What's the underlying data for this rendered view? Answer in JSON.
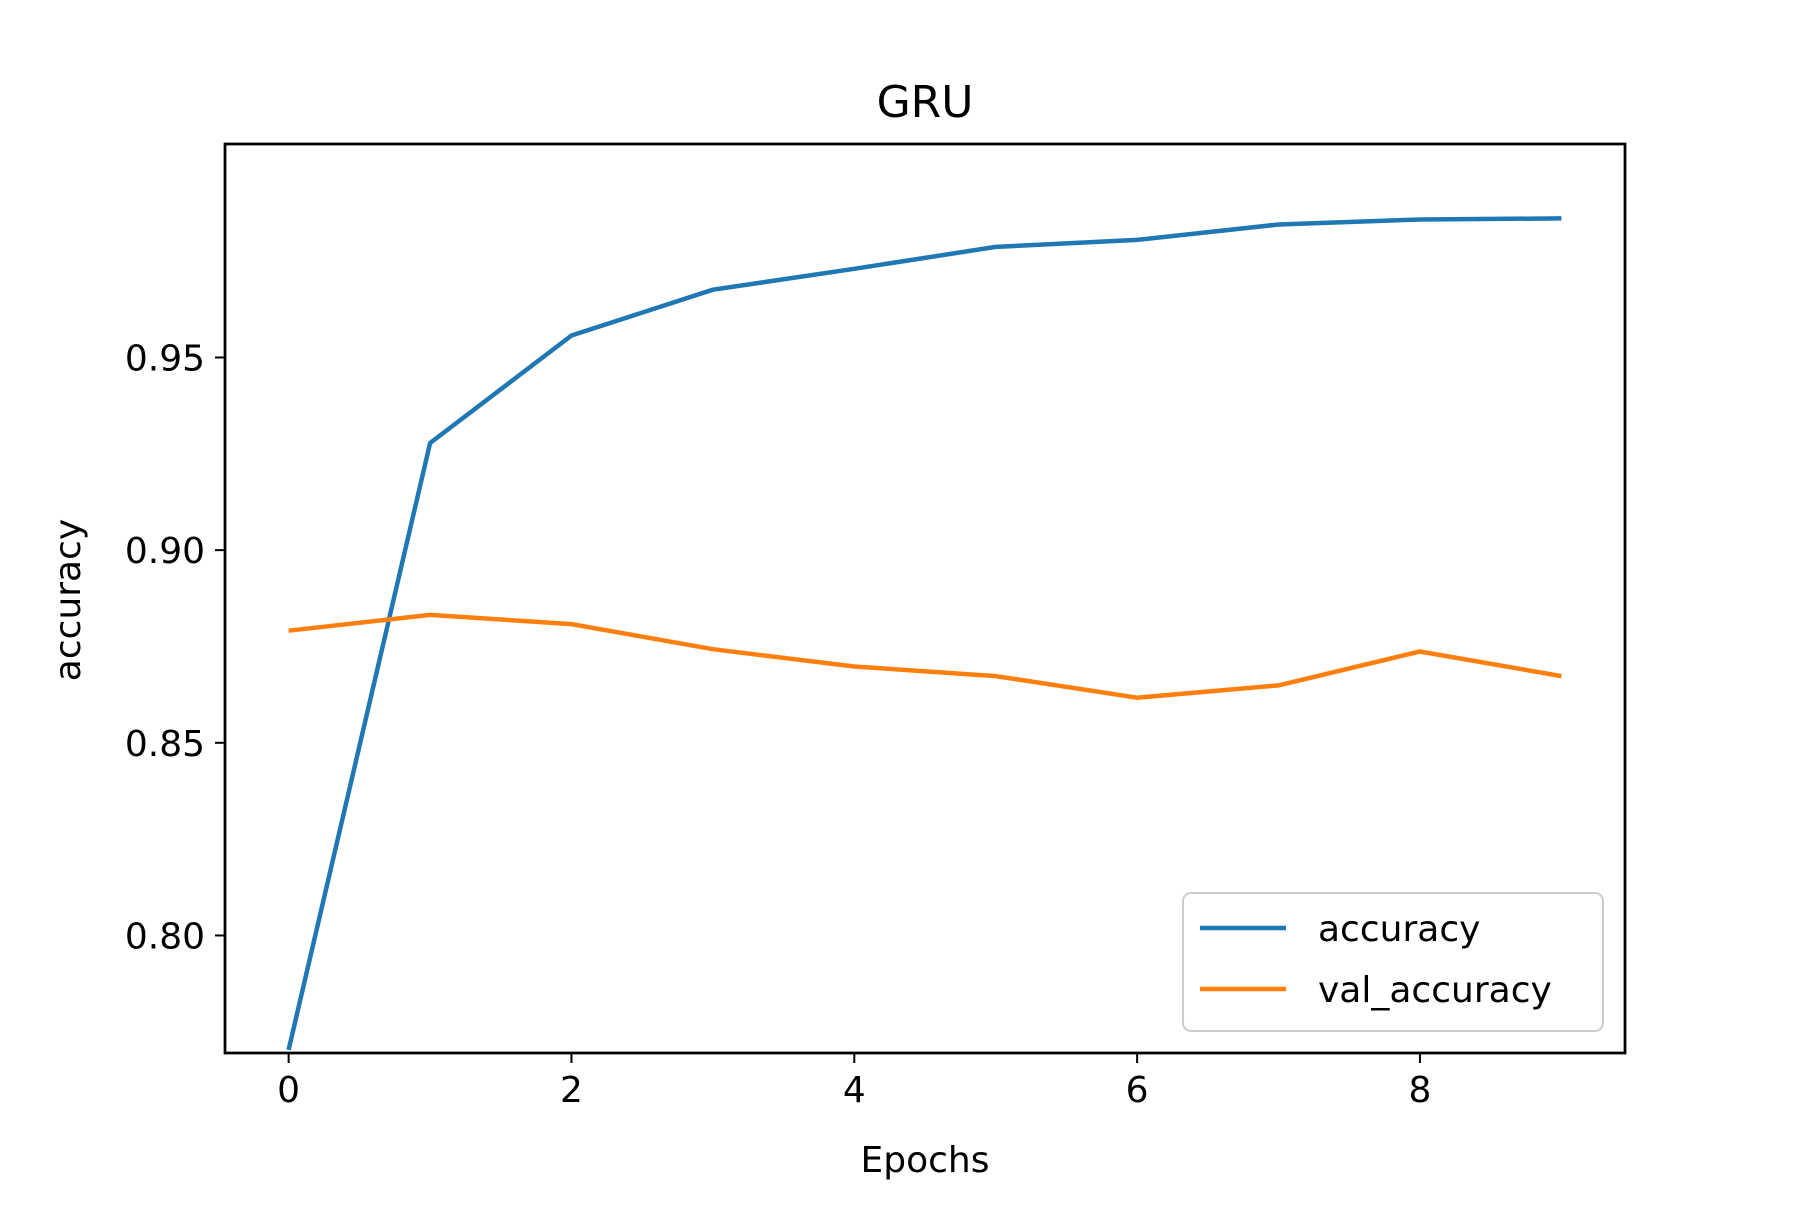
{
  "chart_data": {
    "type": "line",
    "title": "GRU",
    "xlabel": "Epochs",
    "ylabel": "accuracy",
    "x": [
      0,
      1,
      2,
      3,
      4,
      5,
      6,
      7,
      8,
      9
    ],
    "xlim": [
      -0.45,
      9.45
    ],
    "ylim": [
      0.7695,
      1.0054
    ],
    "xticks": [
      0,
      2,
      4,
      6,
      8
    ],
    "xtick_labels": [
      "0",
      "2",
      "4",
      "6",
      "8"
    ],
    "yticks": [
      0.8,
      0.85,
      0.9,
      0.95
    ],
    "ytick_labels": [
      "0.80",
      "0.85",
      "0.90",
      "0.95"
    ],
    "grid": false,
    "legend_position": "lower-right",
    "series": [
      {
        "name": "accuracy",
        "color": "#1f77b4",
        "values": [
          0.7703,
          0.9278,
          0.9557,
          0.9676,
          0.973,
          0.9787,
          0.9805,
          0.9845,
          0.9858,
          0.9861
        ]
      },
      {
        "name": "val_accuracy",
        "color": "#ff7f0e",
        "values": [
          0.8791,
          0.8832,
          0.8808,
          0.8743,
          0.8698,
          0.8673,
          0.8617,
          0.8649,
          0.8737,
          0.8673
        ]
      }
    ]
  }
}
